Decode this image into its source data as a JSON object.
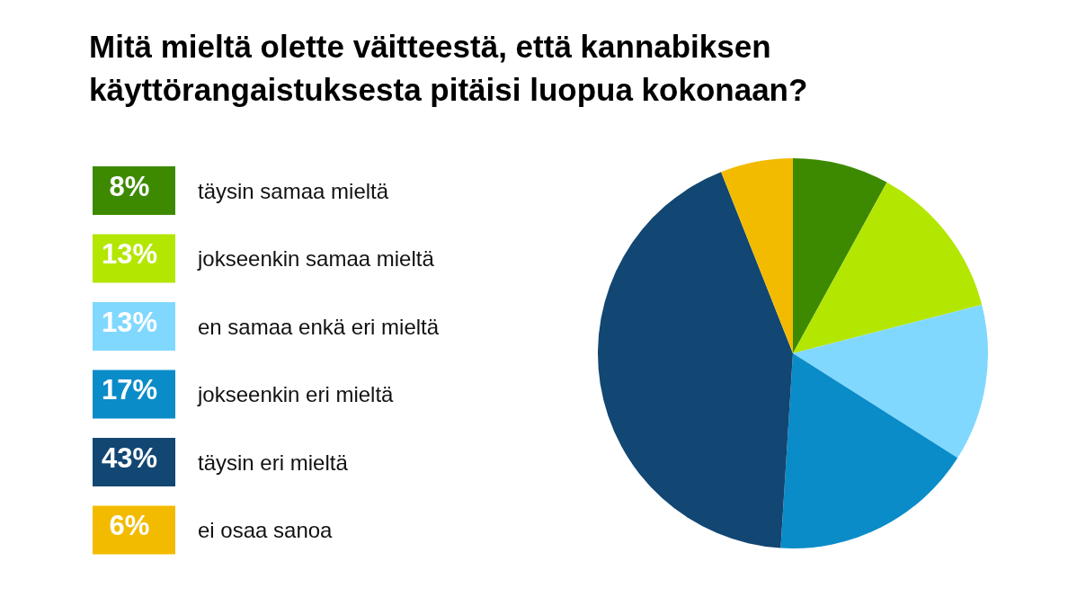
{
  "chart_data": {
    "type": "pie",
    "title": "Mitä mieltä olette väitteestä, että kannabiksen käyttörangaistuksesta pitäisi luopua kokonaan?",
    "categories": [
      "täysin samaa mieltä",
      "jokseenkin samaa mieltä",
      "en samaa enkä eri mieltä",
      "jokseenkin eri mieltä",
      "täysin eri mieltä",
      "ei osaa sanoa"
    ],
    "values": [
      8,
      13,
      13,
      17,
      43,
      6
    ],
    "value_labels": [
      "8%",
      "13%",
      "13%",
      "17%",
      "43%",
      "6%"
    ],
    "colors": [
      "#3d8a00",
      "#b3e600",
      "#80d8ff",
      "#0a8cc8",
      "#124673",
      "#f2bb00"
    ],
    "legend": "left"
  }
}
